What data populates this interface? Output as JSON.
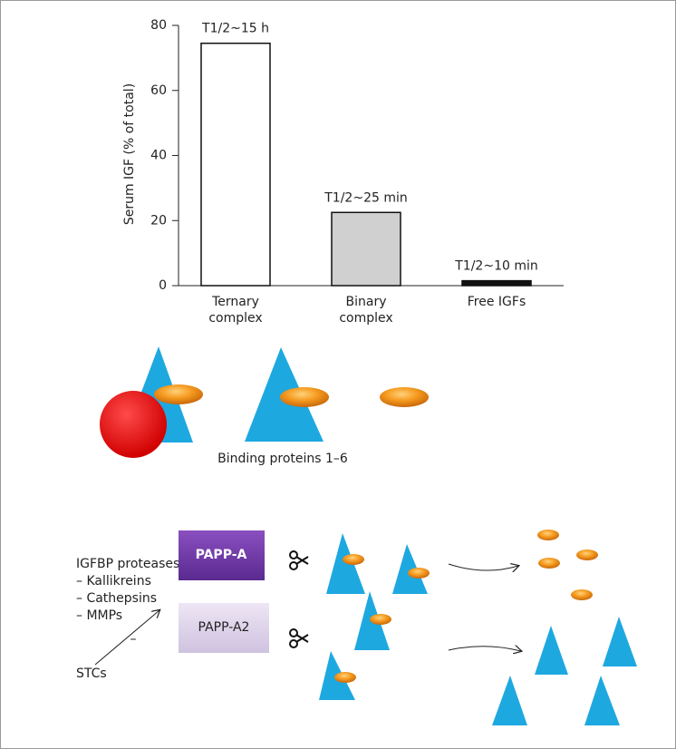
{
  "chart_data": {
    "type": "bar",
    "y_label": "Serum IGF (% of total)",
    "categories": [
      "Ternary complex",
      "Binary complex",
      "Free IGFs"
    ],
    "values": [
      74.5,
      22.5,
      1.5
    ],
    "colors": [
      "#ffffff",
      "#d0d0d0",
      "#111111"
    ],
    "annotations": [
      "T1/2~15 h",
      "T1/2~25 min",
      "T1/2~10 min"
    ],
    "ylim": [
      0,
      80
    ],
    "yticks": [
      0,
      20,
      40,
      60,
      80
    ],
    "grid": false
  },
  "diagram": {
    "binding_label": "Binding proteins 1–6",
    "proteases_title": "IGFBP proteases:",
    "proteases": [
      "– Kallikreins",
      "– Cathepsins",
      "– MMPs"
    ],
    "box_a": "PAPP-A",
    "box_a2": "PAPP-A2",
    "stcs": "STCs",
    "inhibit": "–"
  }
}
